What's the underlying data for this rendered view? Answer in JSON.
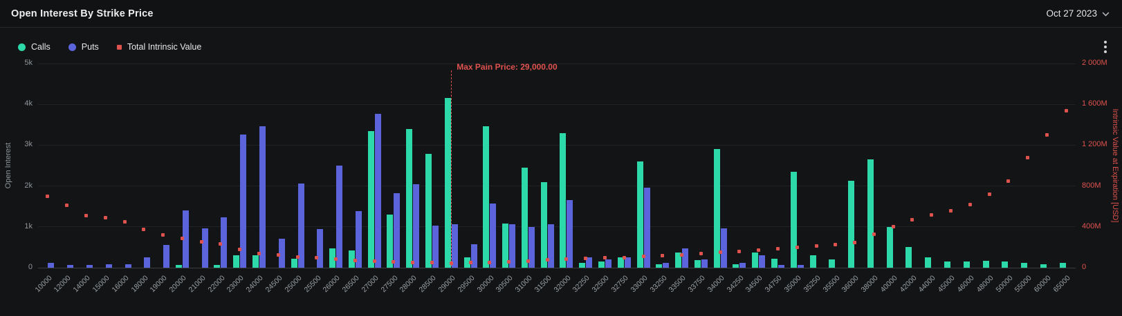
{
  "header": {
    "title": "Open Interest By Strike Price",
    "date_selector": "Oct 27 2023"
  },
  "legend": [
    {
      "label": "Calls",
      "color": "#2ed9a9",
      "shape": "circle"
    },
    {
      "label": "Puts",
      "color": "#5b64da",
      "shape": "circle"
    },
    {
      "label": "Total Intrinsic Value",
      "color": "#e0524e",
      "shape": "square"
    }
  ],
  "chart_data": {
    "type": "bar",
    "title": "Open Interest By Strike Price",
    "categories": [
      "10000",
      "12000",
      "14000",
      "15000",
      "16000",
      "18000",
      "19000",
      "20000",
      "21000",
      "22000",
      "23000",
      "24000",
      "24500",
      "25000",
      "25500",
      "26000",
      "26500",
      "27000",
      "27500",
      "28000",
      "28500",
      "29000",
      "29500",
      "30000",
      "30500",
      "31000",
      "31500",
      "32000",
      "32250",
      "32500",
      "32750",
      "33000",
      "33250",
      "33500",
      "33750",
      "34000",
      "34250",
      "34500",
      "34750",
      "35000",
      "35250",
      "35500",
      "36000",
      "38000",
      "40000",
      "42000",
      "44000",
      "45000",
      "46000",
      "48000",
      "50000",
      "55000",
      "60000",
      "65000"
    ],
    "series": [
      {
        "name": "Calls",
        "type": "bar",
        "axis": "left",
        "color": "#2ed9a9",
        "values": [
          0,
          0,
          0,
          0,
          0,
          0,
          0,
          60,
          0,
          60,
          300,
          300,
          0,
          220,
          0,
          480,
          420,
          3350,
          1300,
          3400,
          2780,
          4150,
          260,
          3470,
          1080,
          2450,
          2100,
          3300,
          120,
          160,
          260,
          2600,
          80,
          380,
          180,
          2900,
          80,
          380,
          220,
          2350,
          300,
          200,
          2130,
          2650,
          1000,
          500,
          250,
          160,
          160,
          170,
          160,
          120,
          90,
          110
        ]
      },
      {
        "name": "Puts",
        "type": "bar",
        "axis": "left",
        "color": "#5b64da",
        "values": [
          110,
          60,
          60,
          90,
          90,
          260,
          560,
          1400,
          960,
          1230,
          3260,
          3460,
          710,
          2060,
          950,
          2500,
          1380,
          3760,
          1820,
          2050,
          1030,
          1060,
          580,
          1570,
          1060,
          1000,
          1070,
          1650,
          260,
          200,
          260,
          1960,
          110,
          470,
          200,
          960,
          110,
          300,
          60,
          70,
          0,
          0,
          0,
          0,
          0,
          0,
          0,
          0,
          0,
          0,
          0,
          0,
          0,
          0
        ]
      },
      {
        "name": "Total Intrinsic Value",
        "type": "scatter",
        "axis": "right",
        "color": "#e0524e",
        "values": [
          700,
          610,
          510,
          490,
          450,
          375,
          320,
          290,
          255,
          230,
          180,
          140,
          125,
          105,
          95,
          85,
          72,
          62,
          55,
          52,
          48,
          45,
          48,
          52,
          58,
          65,
          75,
          85,
          90,
          95,
          100,
          110,
          118,
          128,
          138,
          150,
          160,
          172,
          185,
          200,
          215,
          228,
          250,
          330,
          400,
          470,
          520,
          560,
          620,
          720,
          850,
          1080,
          1300,
          1540
        ]
      }
    ],
    "left_axis": {
      "label": "Open Interest",
      "ticks": [
        "0",
        "1k",
        "2k",
        "3k",
        "4k",
        "5k"
      ],
      "max": 5000
    },
    "right_axis": {
      "label": "Intrinsic Value at Expiration [USD]",
      "ticks": [
        "0",
        "400M",
        "800M",
        "1 200M",
        "1 600M",
        "2 000M"
      ],
      "max": 2000,
      "color": "#e0524e"
    },
    "annotation": {
      "label": "Max Pain Price: 29,000.00",
      "category": "29000",
      "color": "#e0524e"
    },
    "grid": true,
    "legend_position": "top-left"
  }
}
